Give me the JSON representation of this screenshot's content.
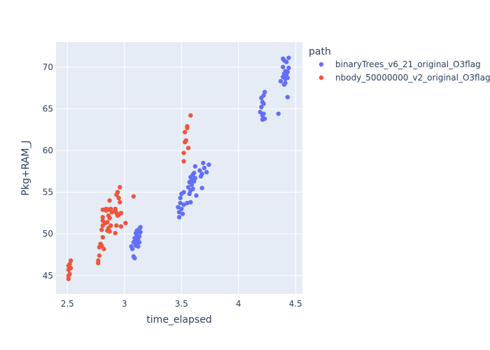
{
  "chart_data": {
    "type": "scatter",
    "xlabel": "time_elapsed",
    "ylabel": "Pkg+RAM_J",
    "xlim": [
      2.4,
      4.56
    ],
    "ylim": [
      42.8,
      73.0
    ],
    "xticks": [
      2.5,
      3,
      3.5,
      4,
      4.5
    ],
    "xtick_labels": [
      "2.5",
      "3",
      "3.5",
      "4",
      "4.5"
    ],
    "yticks": [
      45,
      50,
      55,
      60,
      65,
      70
    ],
    "ytick_labels": [
      "45",
      "50",
      "55",
      "60",
      "65",
      "70"
    ],
    "grid": true,
    "legend_title": "path",
    "legend_position": "right",
    "plot_background": "#e5ecf6",
    "series": [
      {
        "name": "binaryTrees_v6_21_original_O3flag",
        "color": "#636efa",
        "points": [
          [
            3.06,
            48.5
          ],
          [
            3.07,
            48.2
          ],
          [
            3.08,
            47.3
          ],
          [
            3.09,
            47.1
          ],
          [
            3.08,
            49.0
          ],
          [
            3.09,
            49.5
          ],
          [
            3.1,
            49.2
          ],
          [
            3.1,
            50.1
          ],
          [
            3.11,
            48.8
          ],
          [
            3.11,
            49.8
          ],
          [
            3.12,
            50.3
          ],
          [
            3.12,
            48.5
          ],
          [
            3.12,
            49.4
          ],
          [
            3.13,
            50.6
          ],
          [
            3.13,
            49.0
          ],
          [
            3.14,
            50.8
          ],
          [
            3.13,
            49.7
          ],
          [
            3.11,
            50.4
          ],
          [
            3.1,
            48.6
          ],
          [
            3.14,
            50.2
          ],
          [
            3.47,
            53.2
          ],
          [
            3.48,
            52.6
          ],
          [
            3.48,
            52.0
          ],
          [
            3.49,
            53.7
          ],
          [
            3.49,
            54.3
          ],
          [
            3.5,
            53.0
          ],
          [
            3.5,
            54.8
          ],
          [
            3.51,
            52.4
          ],
          [
            3.52,
            53.5
          ],
          [
            3.52,
            55.0
          ],
          [
            3.55,
            53.7
          ],
          [
            3.56,
            55.6
          ],
          [
            3.57,
            54.8
          ],
          [
            3.57,
            56.2
          ],
          [
            3.58,
            55.2
          ],
          [
            3.58,
            56.8
          ],
          [
            3.59,
            55.9
          ],
          [
            3.59,
            56.5
          ],
          [
            3.6,
            57.1
          ],
          [
            3.6,
            55.4
          ],
          [
            3.61,
            56.3
          ],
          [
            3.61,
            57.3
          ],
          [
            3.62,
            56.7
          ],
          [
            3.62,
            58.1
          ],
          [
            3.63,
            54.6
          ],
          [
            3.58,
            53.8
          ],
          [
            3.66,
            57.6
          ],
          [
            3.67,
            56.9
          ],
          [
            3.68,
            55.5
          ],
          [
            3.69,
            58.5
          ],
          [
            3.7,
            57.9
          ],
          [
            3.72,
            57.4
          ],
          [
            3.74,
            58.3
          ],
          [
            3.68,
            57.2
          ],
          [
            4.19,
            64.6
          ],
          [
            4.2,
            65.2
          ],
          [
            4.2,
            66.3
          ],
          [
            4.21,
            63.7
          ],
          [
            4.21,
            65.8
          ],
          [
            4.22,
            66.6
          ],
          [
            4.22,
            64.4
          ],
          [
            4.22,
            65.6
          ],
          [
            4.23,
            63.8
          ],
          [
            4.23,
            67.0
          ],
          [
            4.21,
            64.2
          ],
          [
            4.35,
            64.4
          ],
          [
            4.37,
            68.3
          ],
          [
            4.39,
            68.8
          ],
          [
            4.39,
            70.0
          ],
          [
            4.39,
            71.0
          ],
          [
            4.4,
            69.2
          ],
          [
            4.4,
            70.8
          ],
          [
            4.4,
            67.9
          ],
          [
            4.41,
            69.5
          ],
          [
            4.41,
            68.6
          ],
          [
            4.42,
            70.6
          ],
          [
            4.42,
            69.0
          ],
          [
            4.43,
            69.4
          ],
          [
            4.43,
            68.7
          ],
          [
            4.43,
            66.4
          ],
          [
            4.44,
            71.1
          ],
          [
            4.44,
            69.9
          ],
          [
            4.41,
            68.1
          ]
        ]
      },
      {
        "name": "nbody_50000000_v2_original_O3flag",
        "color": "#ef553b",
        "points": [
          [
            2.51,
            44.6
          ],
          [
            2.51,
            45.0
          ],
          [
            2.51,
            45.7
          ],
          [
            2.51,
            46.2
          ],
          [
            2.52,
            46.4
          ],
          [
            2.52,
            45.2
          ],
          [
            2.53,
            45.9
          ],
          [
            2.53,
            46.8
          ],
          [
            2.77,
            46.5
          ],
          [
            2.77,
            46.8
          ],
          [
            2.78,
            47.4
          ],
          [
            2.78,
            48.4
          ],
          [
            2.79,
            48.8
          ],
          [
            2.8,
            48.6
          ],
          [
            2.8,
            50.5
          ],
          [
            2.81,
            49.6
          ],
          [
            2.81,
            51.0
          ],
          [
            2.81,
            51.6
          ],
          [
            2.81,
            52.0
          ],
          [
            2.81,
            52.9
          ],
          [
            2.82,
            48.2
          ],
          [
            2.83,
            51.3
          ],
          [
            2.84,
            52.8
          ],
          [
            2.84,
            53.0
          ],
          [
            2.85,
            50.4
          ],
          [
            2.85,
            51.4
          ],
          [
            2.86,
            50.7
          ],
          [
            2.86,
            52.2
          ],
          [
            2.86,
            52.9
          ],
          [
            2.87,
            50.3
          ],
          [
            2.87,
            51.9
          ],
          [
            2.87,
            54.0
          ],
          [
            2.88,
            51.0
          ],
          [
            2.88,
            53.0
          ],
          [
            2.89,
            52.6
          ],
          [
            2.92,
            53.0
          ],
          [
            2.92,
            50.1
          ],
          [
            2.93,
            51.0
          ],
          [
            2.93,
            52.5
          ],
          [
            2.93,
            54.7
          ],
          [
            2.94,
            52.2
          ],
          [
            2.94,
            55.0
          ],
          [
            2.95,
            54.3
          ],
          [
            2.95,
            52.3
          ],
          [
            2.96,
            53.8
          ],
          [
            2.96,
            55.6
          ],
          [
            2.97,
            52.5
          ],
          [
            2.97,
            50.9
          ],
          [
            3.01,
            51.3
          ],
          [
            3.08,
            54.5
          ],
          [
            2.92,
            52.8
          ],
          [
            3.52,
            58.7
          ],
          [
            3.52,
            59.7
          ],
          [
            3.53,
            61.0
          ],
          [
            3.53,
            62.2
          ],
          [
            3.54,
            61.2
          ],
          [
            3.55,
            62.7
          ],
          [
            3.55,
            62.9
          ],
          [
            3.56,
            60.3
          ],
          [
            3.58,
            64.2
          ]
        ]
      }
    ]
  }
}
